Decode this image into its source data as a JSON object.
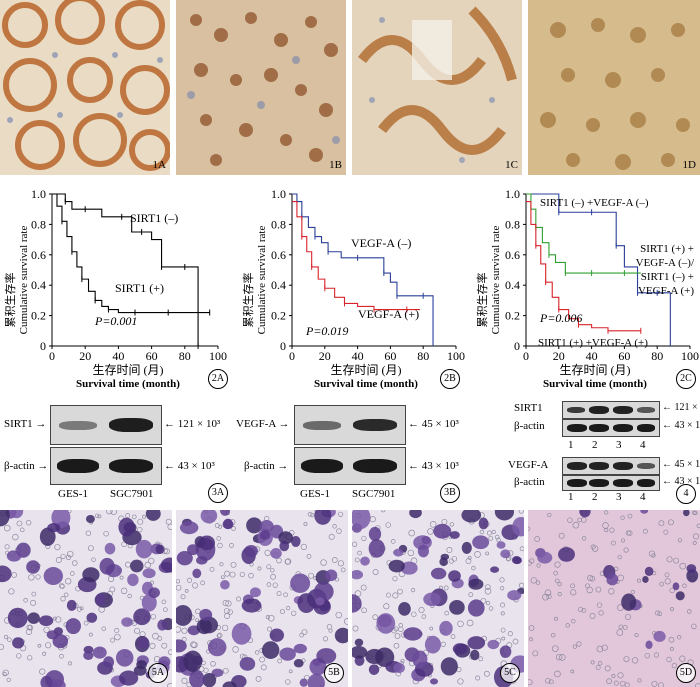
{
  "ihc_panels": [
    {
      "label": "1A"
    },
    {
      "label": "1B"
    },
    {
      "label": "1C"
    },
    {
      "label": "1D"
    }
  ],
  "survival_plots": [
    {
      "label": "2A",
      "ylabel_cn": "累积生存率",
      "ylabel_en": "Cumulative survival rate",
      "xlabel_cn": "生存时间 (月)",
      "xlabel_en": "Survival time (month)",
      "pvalue": "P=0.001",
      "series": [
        {
          "name": "SIRT1 (–)"
        },
        {
          "name": "SIRT1 (+)"
        }
      ]
    },
    {
      "label": "2B",
      "ylabel_cn": "累积生存率",
      "ylabel_en": "Cumulative survival rate",
      "xlabel_cn": "生存时间 (月)",
      "xlabel_en": "Survival time (month)",
      "pvalue": "P=0.019",
      "series": [
        {
          "name": "VEGF-A (–)"
        },
        {
          "name": "VEGF-A (+)"
        }
      ]
    },
    {
      "label": "2C",
      "ylabel_cn": "累积生存率",
      "ylabel_en": "Cumulative survival rate",
      "xlabel_cn": "生存时间 (月)",
      "xlabel_en": "Survival time (month)",
      "pvalue": "P=0.006",
      "series": [
        {
          "name": "SIRT1 (–) +VEGF-A (–)"
        },
        {
          "name_line1": "SIRT1 (+) +",
          "name_line2": "VEGF-A (–)/",
          "name_line3": "SIRT1 (–) +",
          "name_line4": "VEGF-A (+)"
        },
        {
          "name": "SIRT1 (+) +VEGF-A (+)"
        }
      ]
    }
  ],
  "chart_data": [
    {
      "type": "line",
      "panel": "2A",
      "xlabel": "Survival time (month)",
      "ylabel": "Cumulative survival rate",
      "xlim": [
        0,
        100
      ],
      "ylim": [
        0,
        1.0
      ],
      "xticks": [
        "0",
        "20",
        "40",
        "60",
        "80",
        "100"
      ],
      "yticks": [
        "0",
        "0.2",
        "0.4",
        "0.6",
        "0.8",
        "1.0"
      ],
      "series": [
        {
          "name": "SIRT1 (–)",
          "color": "#000000",
          "x": [
            0,
            4,
            8,
            12,
            20,
            30,
            42,
            48,
            54,
            60,
            66,
            72,
            80,
            86,
            88
          ],
          "y": [
            1.0,
            1.0,
            0.95,
            0.9,
            0.9,
            0.85,
            0.85,
            0.75,
            0.75,
            0.7,
            0.52,
            0.52,
            0.52,
            0.52,
            0.0
          ]
        },
        {
          "name": "SIRT1 (+)",
          "color": "#000000",
          "x": [
            0,
            3,
            6,
            9,
            12,
            15,
            18,
            22,
            26,
            30,
            34,
            40,
            50,
            60,
            70,
            80,
            95
          ],
          "y": [
            1.0,
            0.92,
            0.82,
            0.72,
            0.62,
            0.52,
            0.44,
            0.36,
            0.3,
            0.26,
            0.24,
            0.22,
            0.22,
            0.22,
            0.22,
            0.22,
            0.22
          ]
        }
      ]
    },
    {
      "type": "line",
      "panel": "2B",
      "xlabel": "Survival time (month)",
      "ylabel": "Cumulative survival rate",
      "xlim": [
        0,
        100
      ],
      "ylim": [
        0,
        1.0
      ],
      "xticks": [
        "0",
        "20",
        "40",
        "60",
        "80",
        "100"
      ],
      "yticks": [
        "0",
        "0.2",
        "0.4",
        "0.6",
        "0.8",
        "1.0"
      ],
      "series": [
        {
          "name": "VEGF-A (–)",
          "color": "#2a3f9a",
          "x": [
            0,
            3,
            6,
            10,
            14,
            18,
            22,
            30,
            40,
            50,
            56,
            60,
            64,
            70,
            80,
            86
          ],
          "y": [
            1.0,
            0.95,
            0.85,
            0.78,
            0.72,
            0.68,
            0.62,
            0.58,
            0.58,
            0.58,
            0.48,
            0.42,
            0.33,
            0.33,
            0.33,
            0.0
          ]
        },
        {
          "name": "VEGF-A (+)",
          "color": "#d8232a",
          "x": [
            0,
            3,
            6,
            9,
            12,
            16,
            20,
            26,
            32,
            40,
            50,
            60,
            70,
            78
          ],
          "y": [
            0.95,
            0.85,
            0.72,
            0.62,
            0.52,
            0.44,
            0.38,
            0.32,
            0.28,
            0.26,
            0.24,
            0.24,
            0.24,
            0.24
          ]
        }
      ]
    },
    {
      "type": "line",
      "panel": "2C",
      "xlabel": "Survival time (month)",
      "ylabel": "Cumulative survival rate",
      "xlim": [
        0,
        100
      ],
      "ylim": [
        0,
        1.0
      ],
      "xticks": [
        "0",
        "20",
        "40",
        "60",
        "80",
        "100"
      ],
      "yticks": [
        "0",
        "0.2",
        "0.4",
        "0.6",
        "0.8",
        "1.0"
      ],
      "series": [
        {
          "name": "SIRT1 (–) +VEGF-A (–)",
          "color": "#2a3f9a",
          "x": [
            0,
            10,
            20,
            30,
            40,
            50,
            55,
            60,
            68,
            74,
            80,
            88
          ],
          "y": [
            1.0,
            1.0,
            0.88,
            0.88,
            0.88,
            0.88,
            0.66,
            0.52,
            0.35,
            0.35,
            0.35,
            0.0
          ]
        },
        {
          "name": "SIRT1 (+) +VEGF-A (–)/SIRT1 (–) +VEGF-A (+)",
          "color": "#2fa02f",
          "x": [
            0,
            3,
            6,
            10,
            14,
            18,
            24,
            30,
            40,
            50,
            60,
            70
          ],
          "y": [
            1.0,
            0.9,
            0.78,
            0.68,
            0.6,
            0.55,
            0.48,
            0.48,
            0.48,
            0.48,
            0.48,
            0.48
          ]
        },
        {
          "name": "SIRT1 (+) +VEGF-A (+)",
          "color": "#d8232a",
          "x": [
            0,
            3,
            6,
            9,
            12,
            16,
            20,
            26,
            32,
            40,
            50,
            60,
            70
          ],
          "y": [
            0.95,
            0.8,
            0.66,
            0.54,
            0.42,
            0.32,
            0.24,
            0.18,
            0.14,
            0.12,
            0.1,
            0.1,
            0.1
          ]
        }
      ]
    }
  ],
  "western_blots": {
    "blot_3A": {
      "label": "3A",
      "row1_label": "SIRT1",
      "row1_size": "121 × 10³",
      "row2_label": "β-actin",
      "row2_size": "43 × 10³",
      "lane1": "GES-1",
      "lane2": "SGC7901"
    },
    "blot_3B": {
      "label": "3B",
      "row1_label": "VEGF-A",
      "row1_size": "45 × 10³",
      "row2_label": "β-actin",
      "row2_size": "43 × 10³",
      "lane1": "GES-1",
      "lane2": "SGC7901"
    },
    "blot_4": {
      "label": "4",
      "r1_label": "SIRT1",
      "r1_size": "121 × 10³",
      "r2_label": "β-actin",
      "r2_size": "43 × 10³",
      "r3_label": "VEGF-A",
      "r3_size": "45 × 10³",
      "r4_label": "β-actin",
      "r4_size": "43 × 10³",
      "lanes": [
        "1",
        "2",
        "3",
        "4"
      ]
    }
  },
  "transwell_panels": [
    {
      "label": "5A"
    },
    {
      "label": "5B"
    },
    {
      "label": "5C"
    },
    {
      "label": "5D"
    }
  ]
}
